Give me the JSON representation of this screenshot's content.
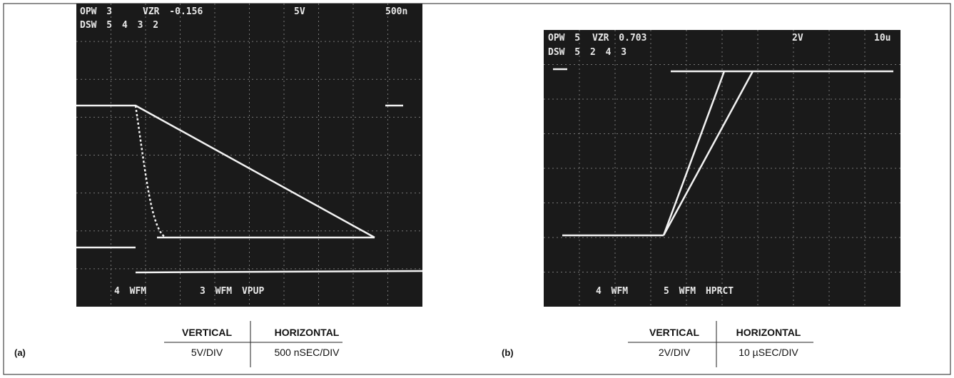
{
  "panels": [
    {
      "label": "(a)",
      "screen": {
        "top": [
          "OPW 3",
          "VZR -0.156",
          "5V",
          "500n"
        ],
        "dsw": "DSW 5 4 3 2",
        "bottom": [
          "4 WFM",
          "3 WFM VPUP"
        ]
      },
      "table": {
        "headers": [
          "VERTICAL",
          "HORIZONTAL"
        ],
        "values": [
          "5V/DIV",
          "500 nSEC/DIV"
        ]
      }
    },
    {
      "label": "(b)",
      "screen": {
        "top": [
          "OPW 5",
          "VZR 0.703",
          "2V",
          "10u"
        ],
        "dsw": "DSW 5 2 4 3",
        "bottom": [
          "4 WFM",
          "5 WFM HPRCT"
        ]
      },
      "table": {
        "headers": [
          "VERTICAL",
          "HORIZONTAL"
        ],
        "values": [
          "2V/DIV",
          "10 µSEC/DIV"
        ]
      }
    }
  ]
}
